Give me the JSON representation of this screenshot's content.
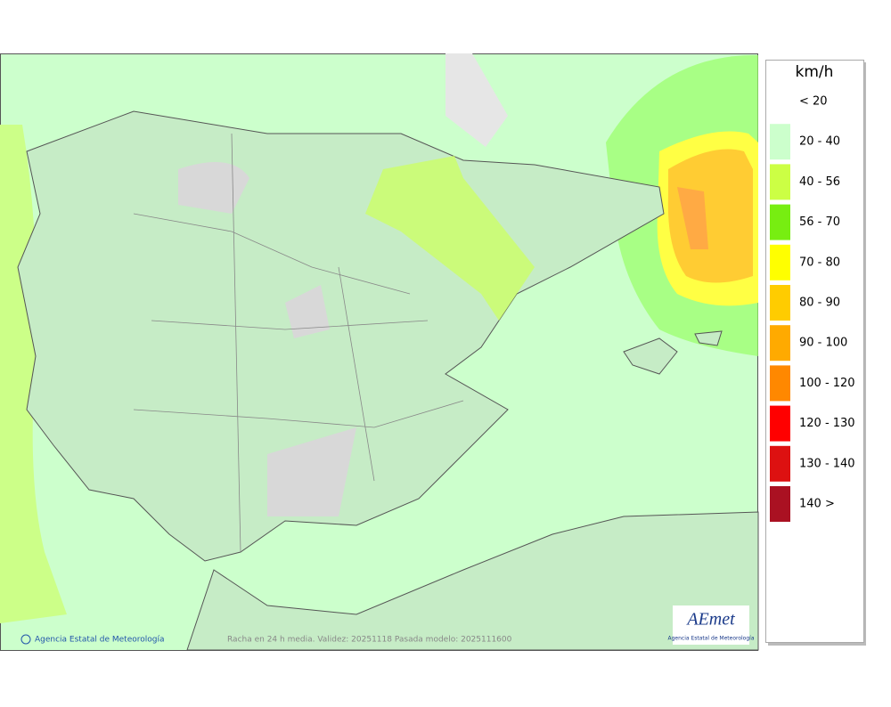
{
  "legend": {
    "unit": "km/h",
    "items": [
      {
        "label": "< 20"
      },
      {
        "label": "20 - 40",
        "color": "#ccffcc"
      },
      {
        "label": "40 - 56",
        "color": "#ccff44"
      },
      {
        "label": "56 - 70",
        "color": "#77ee11"
      },
      {
        "label": "70 - 80",
        "color": "#ffff00"
      },
      {
        "label": "80 - 90",
        "color": "#ffcc00"
      },
      {
        "label": "90 - 100",
        "color": "#ffaa00"
      },
      {
        "label": "100 - 120",
        "color": "#ff8800"
      },
      {
        "label": "120 - 130",
        "color": "#ff0000"
      },
      {
        "label": "130 - 140",
        "color": "#dd1111"
      },
      {
        "label": "140 >",
        "color": "#aa1122"
      }
    ]
  },
  "credit": "Agencia Estatal de Meteorología",
  "caption": "Racha en 24 h media. Validez: 20251118 Pasada modelo: 2025111600",
  "logo": {
    "name": "AEmet",
    "subtitle": "Agencia Estatal de Meteorología"
  }
}
